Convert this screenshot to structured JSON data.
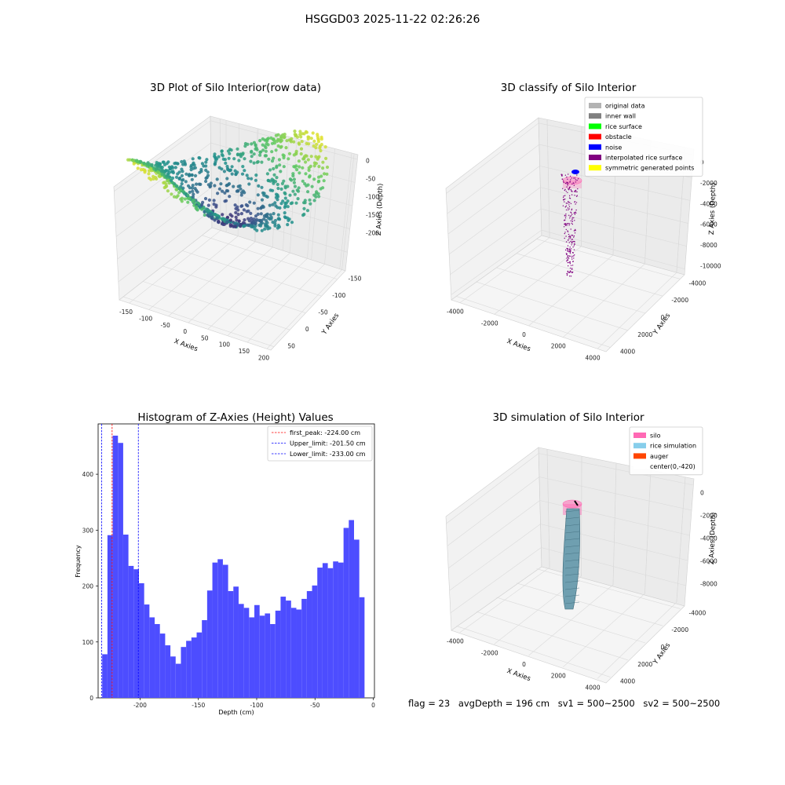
{
  "suptitle": "HSGGD03 2025-11-22 02:26:26",
  "chart_data": [
    {
      "type": "scatter",
      "dimension": "3d",
      "title": "3D Plot of Silo Interior(row data)",
      "xlabel": "X Axies",
      "ylabel": "Y Axies",
      "zlabel": "Z Axies (Depth)",
      "x_ticks": [
        "-150",
        "-100",
        "-50",
        "0",
        "50",
        "100",
        "150",
        "200"
      ],
      "y_ticks": [
        "-150",
        "-100",
        "-50",
        "0",
        "50"
      ],
      "z_ticks": [
        "0",
        "-50",
        "-100",
        "-150",
        "-200"
      ],
      "xlim": [
        -175,
        210
      ],
      "ylim": [
        -160,
        75
      ],
      "zlim": [
        -240,
        10
      ],
      "colormap": "viridis",
      "grid": true
    },
    {
      "type": "scatter",
      "dimension": "3d",
      "title": "3D classify of Silo Interior",
      "xlabel": "X Axies",
      "ylabel": "Y Axies",
      "zlabel": "Z Axies (Depth)",
      "x_ticks": [
        "-4000",
        "-2000",
        "0",
        "2000",
        "4000"
      ],
      "y_ticks": [
        "-4000",
        "-2000",
        "0",
        "2000",
        "4000"
      ],
      "z_ticks": [
        "0",
        "-2000",
        "-4000",
        "-6000",
        "-8000",
        "-10000"
      ],
      "xlim": [
        -4500,
        4500
      ],
      "ylim": [
        -4500,
        4500
      ],
      "zlim": [
        -10500,
        500
      ],
      "legend": [
        {
          "label": "original data",
          "color": "#b3b3b3"
        },
        {
          "label": "inner wall",
          "color": "#808080"
        },
        {
          "label": "rice surface",
          "color": "#00ff00"
        },
        {
          "label": "obstacle",
          "color": "#ff0000"
        },
        {
          "label": "noise",
          "color": "#0000ff"
        },
        {
          "label": "interpolated rice surface",
          "color": "#800080"
        },
        {
          "label": "symmetric generated points",
          "color": "#ffff00"
        }
      ],
      "legend_position": "top-right",
      "grid": true
    },
    {
      "type": "bar",
      "title": "Histogram of Z-Axies (Height) Values",
      "xlabel": "Depth (cm)",
      "ylabel": "Frequency",
      "x_ticks": [
        "-200",
        "-150",
        "-100",
        "-50",
        "0"
      ],
      "y_ticks": [
        "0",
        "100",
        "200",
        "300",
        "400"
      ],
      "xlim": [
        -236,
        1
      ],
      "ylim": [
        0,
        490
      ],
      "bin_start": -232.5,
      "bin_width": 4.5,
      "values": [
        78,
        291,
        469,
        456,
        292,
        236,
        230,
        205,
        167,
        144,
        132,
        115,
        94,
        74,
        61,
        91,
        102,
        108,
        117,
        139,
        192,
        242,
        248,
        238,
        191,
        199,
        168,
        161,
        144,
        166,
        147,
        151,
        132,
        156,
        181,
        174,
        161,
        158,
        177,
        191,
        201,
        233,
        241,
        232,
        244,
        242,
        304,
        318,
        283,
        180
      ],
      "bar_color": "#4d4dff",
      "lines": [
        {
          "label": "first_peak: -224.00 cm",
          "x": -224.0,
          "color": "#ff0000"
        },
        {
          "label": "Upper_limit: -201.50 cm",
          "x": -201.5,
          "color": "#0000ff"
        },
        {
          "label": "Lower_limit: -233.00 cm",
          "x": -233.0,
          "color": "#0000ff"
        }
      ],
      "legend_position": "top-right",
      "grid": false
    },
    {
      "type": "scatter",
      "dimension": "3d",
      "title": "3D simulation of Silo Interior",
      "xlabel": "X Axies",
      "ylabel": "Y Axies",
      "zlabel": "Z Axies (Depth)",
      "x_ticks": [
        "-4000",
        "-2000",
        "0",
        "2000",
        "4000"
      ],
      "y_ticks": [
        "-4000",
        "-2000",
        "0",
        "2000",
        "4000"
      ],
      "z_ticks": [
        "0",
        "-2000",
        "-4000",
        "-6000",
        "-8000"
      ],
      "xlim": [
        -4500,
        4500
      ],
      "ylim": [
        -4500,
        4500
      ],
      "zlim": [
        -9500,
        500
      ],
      "legend": [
        {
          "label": "silo",
          "color": "#ff69b4"
        },
        {
          "label": "rice simulation",
          "color": "#87ceeb"
        },
        {
          "label": "auger",
          "color": "#ff4500"
        },
        {
          "label": "center(0,-420)",
          "color": "#ffffff"
        }
      ],
      "legend_position": "top-right",
      "grid": true
    }
  ],
  "footer": {
    "flag": "flag = 23",
    "avg_depth": "avgDepth = 196 cm",
    "sv1": "sv1 = 500~2500",
    "sv2": "sv2 = 500~2500"
  }
}
